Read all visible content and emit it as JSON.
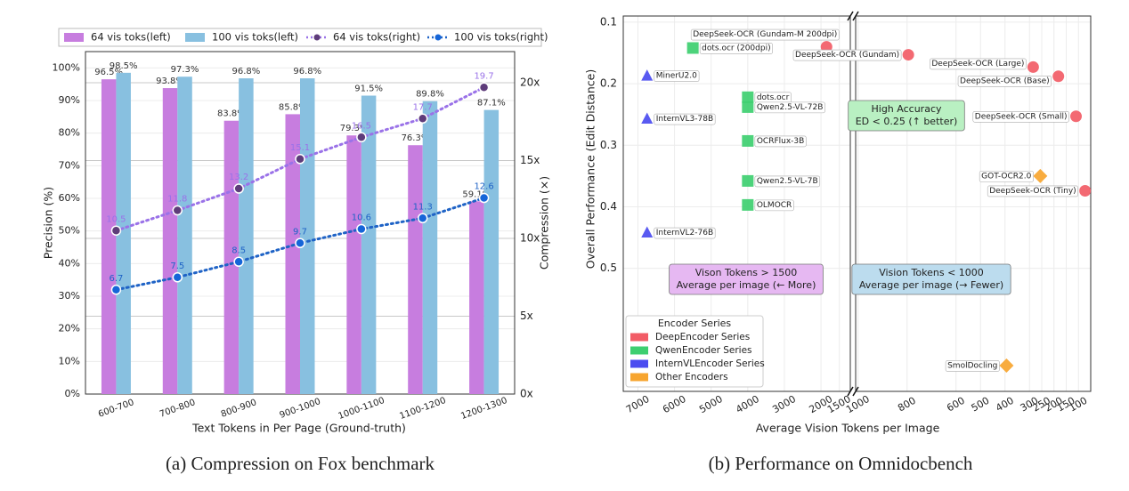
{
  "chart_data": [
    {
      "type": "bar_line",
      "caption": "(a) Compression on Fox benchmark",
      "xlabel": "Text Tokens in Per Page (Ground-truth)",
      "ylabel": "Precision (%)",
      "y2label": "Compression (×)",
      "categories": [
        "600-700",
        "700-800",
        "800-900",
        "900-1000",
        "1000-1100",
        "1100-1200",
        "1200-1300"
      ],
      "series": [
        {
          "name": "64 vis toks(left)",
          "type": "bar",
          "color": "#c77ddf",
          "values": [
            96.5,
            93.8,
            83.8,
            85.8,
            79.3,
            76.3,
            59.1
          ],
          "value_labels": [
            "96.5%",
            "93.8%",
            "83.8%",
            "85.8%",
            "79.3%",
            "76.3%",
            "59.1%"
          ]
        },
        {
          "name": "100 vis toks(left)",
          "type": "bar",
          "color": "#88c0e0",
          "values": [
            98.5,
            97.3,
            96.8,
            96.8,
            91.5,
            89.8,
            87.1
          ],
          "value_labels": [
            "98.5%",
            "97.3%",
            "96.8%",
            "96.8%",
            "91.5%",
            "89.8%",
            "87.1%"
          ]
        },
        {
          "name": "64 vis toks(right)",
          "type": "line",
          "axis": "y2",
          "color": "#9a72e8",
          "marker_color": "#5e3c7a",
          "values": [
            10.5,
            11.8,
            13.2,
            15.1,
            16.5,
            17.7,
            19.7
          ]
        },
        {
          "name": "100 vis toks(right)",
          "type": "line",
          "axis": "y2",
          "color": "#1f63c6",
          "marker_color": "#1565d8",
          "values": [
            6.7,
            7.5,
            8.5,
            9.7,
            10.6,
            11.3,
            12.6
          ]
        }
      ],
      "ylim": [
        0,
        105
      ],
      "yticks": [
        {
          "value": 0,
          "label": "0%"
        },
        {
          "value": 10,
          "label": "10%"
        },
        {
          "value": 20,
          "label": "20%"
        },
        {
          "value": 30,
          "label": "30%"
        },
        {
          "value": 40,
          "label": "40%"
        },
        {
          "value": 50,
          "label": "50%"
        },
        {
          "value": 60,
          "label": "60%"
        },
        {
          "value": 70,
          "label": "70%"
        },
        {
          "value": 80,
          "label": "80%"
        },
        {
          "value": 90,
          "label": "90%"
        },
        {
          "value": 100,
          "label": "100%"
        }
      ],
      "y2lim": [
        0,
        22
      ],
      "y2ticks": [
        {
          "value": 0,
          "label": "0x"
        },
        {
          "value": 5,
          "label": "5x"
        },
        {
          "value": 10,
          "label": "10x"
        },
        {
          "value": 15,
          "label": "15x"
        },
        {
          "value": 20,
          "label": "20x"
        }
      ],
      "grid": true,
      "legend": "top"
    },
    {
      "type": "scatter_broken",
      "caption": "(b) Performance on Omnidocbench",
      "xlabel": "Average Vision Tokens per Image",
      "ylabel": "Overall Performance (Edit Distance)",
      "x_segments": [
        {
          "xlim": [
            7400,
            1200
          ],
          "xticks": [
            7000,
            6000,
            5000,
            4000,
            3000,
            2000,
            1500
          ]
        },
        {
          "xlim": [
            1010,
            50
          ],
          "xticks": [
            1000,
            800,
            600,
            500,
            400,
            300,
            250,
            200,
            150,
            100
          ]
        }
      ],
      "ylim": [
        0.09,
        0.7
      ],
      "y_inverted": true,
      "yticks": [
        0.1,
        0.2,
        0.3,
        0.4,
        0.5
      ],
      "grid": true,
      "legend_title": "Encoder Series",
      "legend": "lower left",
      "series": [
        {
          "name": "DeepEncoder Series",
          "color": "#f25c66",
          "marker": "circle",
          "labels": [
            "DeepSeek-OCR (Gundam-M 200dpi)",
            "DeepSeek-OCR (Gundam)",
            "DeepSeek-OCR (Large)",
            "DeepSeek-OCR (Base)",
            "DeepSeek-OCR (Small)",
            "DeepSeek-OCR (Tiny)"
          ],
          "x": [
            1850,
            795,
            285,
            182,
            110,
            73
          ],
          "values": [
            0.14,
            0.153,
            0.173,
            0.188,
            0.253,
            0.374
          ]
        },
        {
          "name": "QwenEncoder Series",
          "color": "#3ecf70",
          "marker": "square",
          "labels": [
            "dots.ocr (200dpi)",
            "dots.ocr",
            "Qwen2.5-VL-72B",
            "OCRFlux-3B",
            "Qwen2.5-VL-7B",
            "OLMOCR"
          ],
          "x": [
            5500,
            4000,
            4000,
            4000,
            4000,
            4000
          ],
          "values": [
            0.142,
            0.222,
            0.238,
            0.293,
            0.358,
            0.397
          ]
        },
        {
          "name": "InternVLEncoder Series",
          "color": "#4b4cf0",
          "marker": "triangle",
          "labels": [
            "MinerU2.0",
            "InternVL3-78B",
            "InternVL2-76B"
          ],
          "x": [
            6750,
            6750,
            6750
          ],
          "values": [
            0.187,
            0.257,
            0.442
          ]
        },
        {
          "name": "Other Encoders",
          "color": "#f7a52f",
          "marker": "diamond",
          "labels": [
            "GOT-OCR2.0",
            "SmolDocling"
          ],
          "x": [
            256,
            394
          ],
          "values": [
            0.35,
            0.658
          ]
        }
      ],
      "annotations": [
        {
          "lines": [
            "High Accuracy",
            "ED < 0.25 (↑ better)"
          ],
          "color": "#b9f0c2"
        },
        {
          "lines": [
            "Vison Tokens > 1500",
            "Average per image (← More)"
          ],
          "color": "#e6b8f2"
        },
        {
          "lines": [
            "Vision Tokens < 1000",
            "Average per image (→ Fewer)"
          ],
          "color": "#bcdcee"
        }
      ]
    }
  ]
}
